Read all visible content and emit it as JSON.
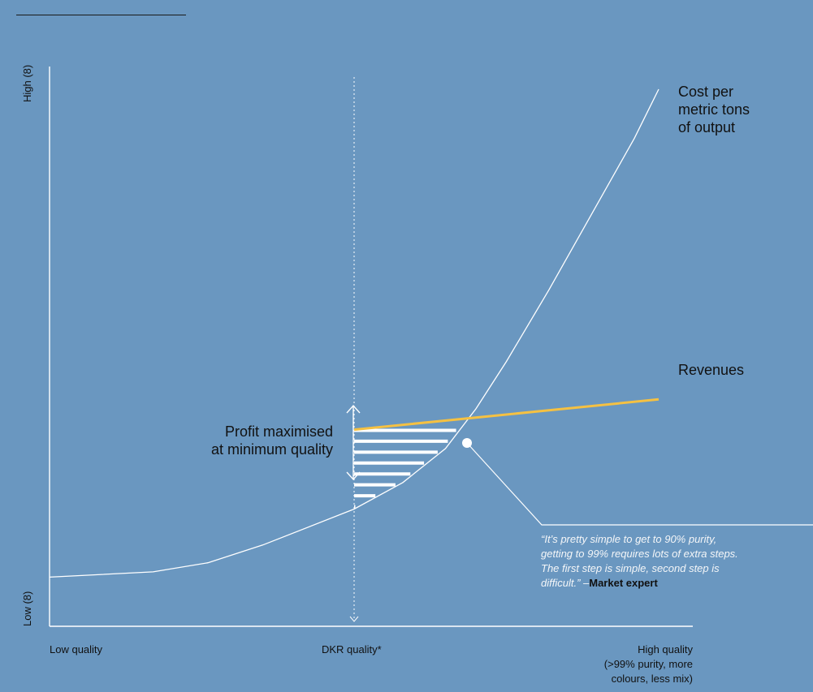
{
  "chart_data": {
    "type": "line",
    "title": "",
    "x_axis": {
      "low_label": "Low quality",
      "mid_label": "DKR quality*",
      "high_label": "High quality\n(>99% purity, more\ncolours, less mix)"
    },
    "y_axis": {
      "high_label": "High (8)",
      "low_label": "Low (8)"
    },
    "series": [
      {
        "name": "Cost per metric tons of output",
        "label": "Cost per\nmetric tons\nof output",
        "color": "#ffffff",
        "points": [
          [
            0,
            1.3
          ],
          [
            1.7,
            1.44
          ],
          [
            2.6,
            1.68
          ],
          [
            3.5,
            2.15
          ],
          [
            5.0,
            3.1
          ],
          [
            5.8,
            3.8
          ],
          [
            6.5,
            4.7
          ],
          [
            7.0,
            5.75
          ],
          [
            7.5,
            7.0
          ],
          [
            8.2,
            8.9
          ],
          [
            8.9,
            10.9
          ],
          [
            9.6,
            12.9
          ],
          [
            10.0,
            14.2
          ]
        ]
      },
      {
        "name": "Revenues",
        "label": "Revenues",
        "color": "#f5c142",
        "points": [
          [
            5.0,
            5.2
          ],
          [
            10.0,
            6.0
          ]
        ]
      }
    ],
    "xlim": [
      0,
      10
    ],
    "ylim": [
      0,
      14.8
    ],
    "reference_x": 5.0,
    "shaded_region": "profit between revenues and cost, x from 5.0 to ~7.4",
    "annotations": {
      "profit": "Profit maximised\nat minimum quality",
      "quote": "“It’s pretty simple to get to 90% purity,\n getting to 99% requires lots of extra steps.\n The first step is simple, second step is\n difficult.” –",
      "quote_source": "Market expert"
    },
    "grid": false,
    "legend": "none"
  }
}
